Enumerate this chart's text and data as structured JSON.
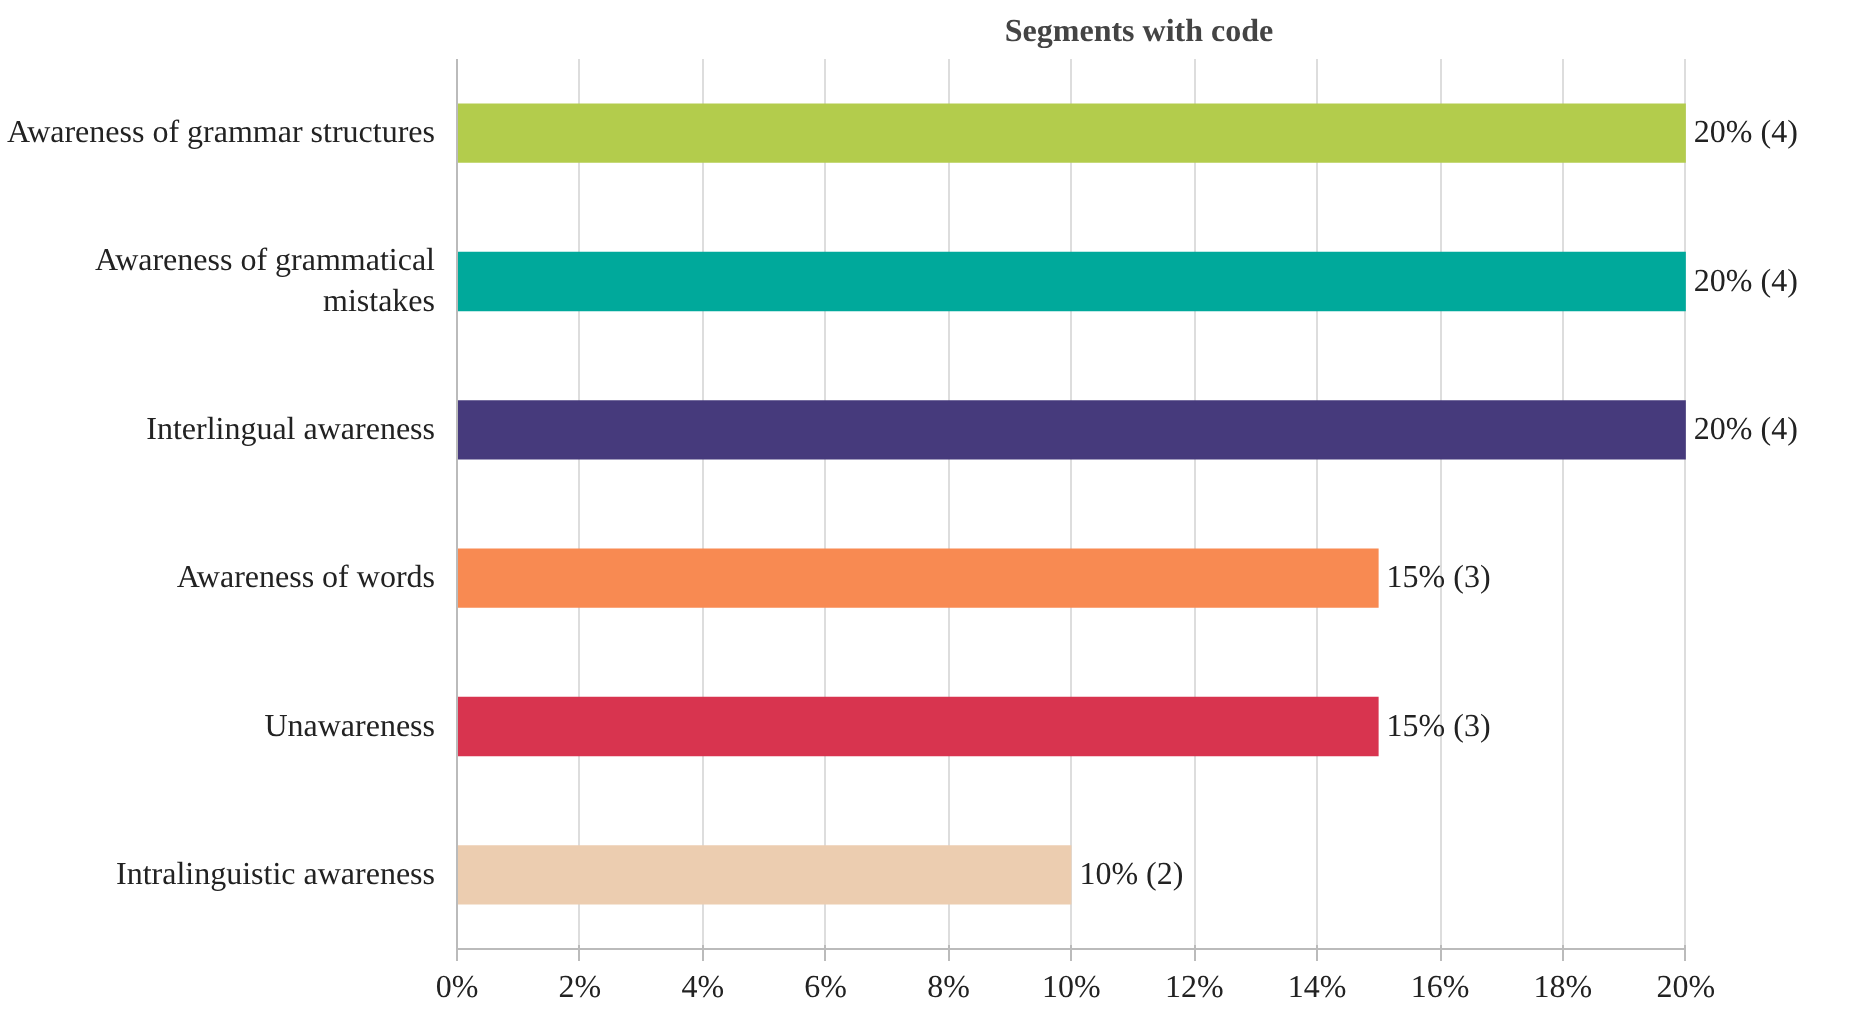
{
  "chart_data": {
    "type": "bar",
    "orientation": "horizontal",
    "title": "Segments with code",
    "categories": [
      "Awareness of grammar structures",
      "Awareness of grammatical mistakes",
      "Interlingual awareness",
      "Awareness of words",
      "Unawareness",
      "Intralinguistic awareness"
    ],
    "values": [
      20,
      20,
      20,
      15,
      15,
      10
    ],
    "colors": [
      "#b3cc4c",
      "#00a99b",
      "#463a7c",
      "#f88a52",
      "#d8344f",
      "#eccdb0"
    ],
    "value_labels": [
      "20% (4)",
      "20% (4)",
      "20% (4)",
      "15% (3)",
      "15% (3)",
      "10% (2)"
    ],
    "xlim": [
      0,
      20
    ],
    "xticks": [
      {
        "value": 0,
        "label": "0%"
      },
      {
        "value": 2,
        "label": "2%"
      },
      {
        "value": 4,
        "label": "4%"
      },
      {
        "value": 6,
        "label": "6%"
      },
      {
        "value": 8,
        "label": "8%"
      },
      {
        "value": 10,
        "label": "10%"
      },
      {
        "value": 12,
        "label": "12%"
      },
      {
        "value": 14,
        "label": "14%"
      },
      {
        "value": 16,
        "label": "16%"
      },
      {
        "value": 18,
        "label": "18%"
      },
      {
        "value": 20,
        "label": "20%"
      }
    ],
    "grid": "x"
  }
}
